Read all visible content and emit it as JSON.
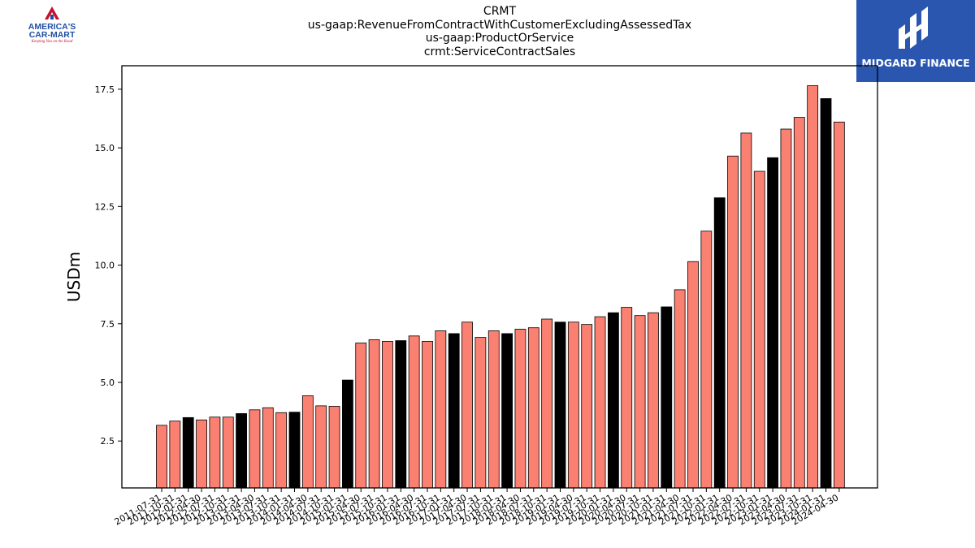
{
  "header": {
    "title_lines": [
      "CRMT",
      "us-gaap:RevenueFromContractWithCustomerExcludingAssessedTax",
      "us-gaap:ProductOrService",
      "crmt:ServiceContractSales"
    ]
  },
  "logos": {
    "left": {
      "line1": "AMERICA'S",
      "line2": "CAR-MART",
      "tagline": "Keeping You on the Road"
    },
    "right": {
      "name": "MIDGARD FINANCE",
      "bg_color": "#2a56b0"
    }
  },
  "colors": {
    "bar_default": "#fa8072",
    "bar_highlight": "#000000"
  },
  "chart_data": {
    "type": "bar",
    "title": "CRMT\nus-gaap:RevenueFromContractWithCustomerExcludingAssessedTax\nus-gaap:ProductOrService\ncrmt:ServiceContractSales",
    "xlabel": "",
    "ylabel": "USDm",
    "ylim": [
      0.5,
      18.5
    ],
    "yticks": [
      2.5,
      5.0,
      7.5,
      10.0,
      12.5,
      15.0,
      17.5
    ],
    "grid": false,
    "categories": [
      "2011-07-31",
      "2011-10-31",
      "2012-01-31",
      "2012-04-30",
      "2012-07-31",
      "2012-10-31",
      "2013-01-31",
      "2013-04-30",
      "2013-07-31",
      "2013-10-31",
      "2014-01-31",
      "2014-04-30",
      "2014-07-31",
      "2014-10-31",
      "2015-01-31",
      "2015-04-30",
      "2015-07-31",
      "2015-10-31",
      "2016-01-31",
      "2016-04-30",
      "2016-07-31",
      "2016-10-31",
      "2017-01-31",
      "2017-04-30",
      "2017-07-31",
      "2017-10-31",
      "2018-01-31",
      "2018-04-30",
      "2018-07-31",
      "2018-10-31",
      "2019-01-31",
      "2019-04-30",
      "2019-07-31",
      "2019-10-31",
      "2020-01-31",
      "2020-04-30",
      "2020-07-31",
      "2020-10-31",
      "2021-01-31",
      "2021-04-30",
      "2021-07-31",
      "2021-10-31",
      "2022-01-31",
      "2022-04-30",
      "2022-07-31",
      "2022-10-31",
      "2023-01-31",
      "2023-04-30",
      "2023-07-31",
      "2023-10-31",
      "2024-01-31",
      "2024-04-30"
    ],
    "values": [
      3.17,
      3.35,
      3.5,
      3.4,
      3.52,
      3.52,
      3.67,
      3.83,
      3.92,
      3.71,
      3.73,
      4.43,
      4.0,
      3.98,
      5.1,
      6.68,
      6.82,
      6.75,
      6.78,
      6.98,
      6.75,
      7.2,
      7.08,
      7.57,
      6.92,
      7.2,
      7.08,
      7.27,
      7.33,
      7.7,
      7.57,
      7.57,
      7.47,
      7.8,
      7.97,
      8.2,
      7.85,
      7.97,
      8.22,
      8.95,
      10.15,
      11.45,
      12.87,
      14.65,
      15.63,
      14.0,
      14.58,
      15.8,
      16.3,
      17.65,
      17.1,
      16.1
    ],
    "highlight_indices": [
      2,
      6,
      10,
      14,
      18,
      22,
      26,
      30,
      34,
      38,
      42,
      46,
      50
    ]
  }
}
